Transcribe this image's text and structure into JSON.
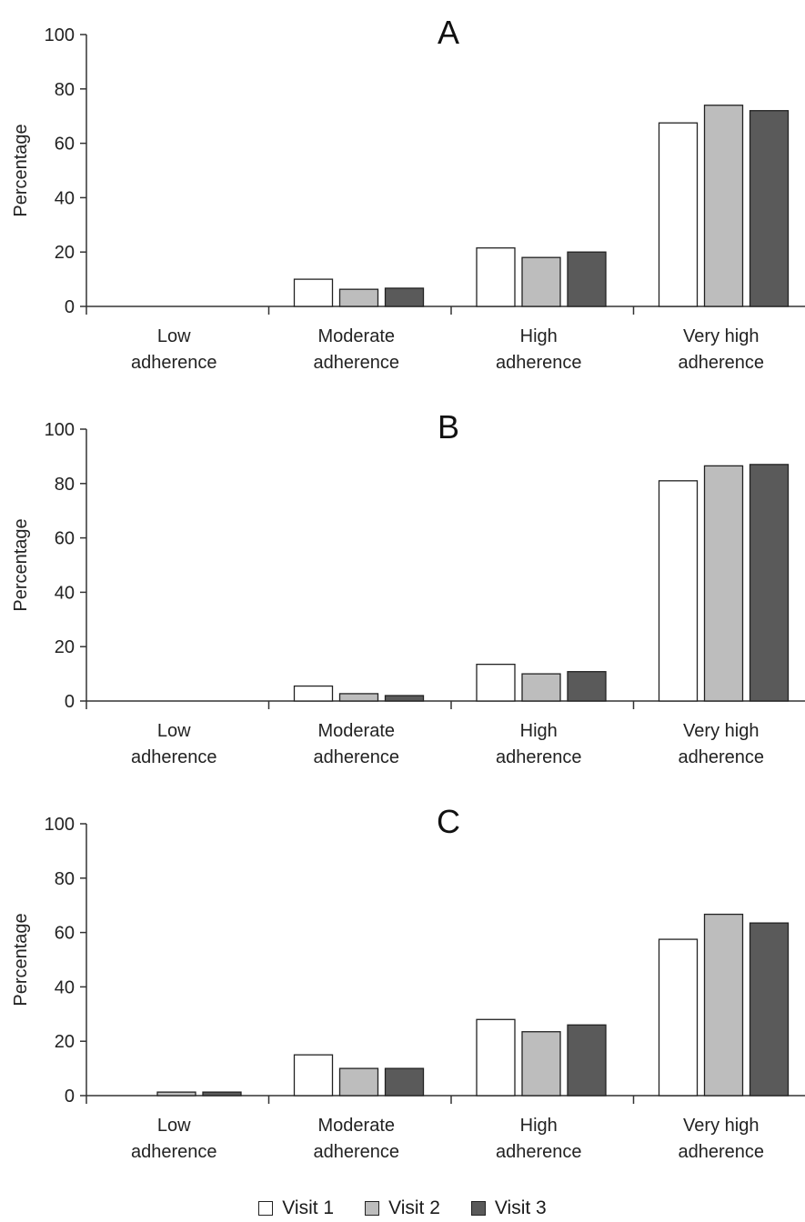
{
  "chart_data": [
    {
      "type": "bar",
      "title": "A",
      "ylabel": "Percentage",
      "ylim": [
        0,
        100
      ],
      "yticks": [
        0,
        20,
        40,
        60,
        80,
        100
      ],
      "categories": [
        [
          "Low",
          "adherence"
        ],
        [
          "Moderate",
          "adherence"
        ],
        [
          "High",
          "adherence"
        ],
        [
          "Very high",
          "adherence"
        ]
      ],
      "series": [
        {
          "name": "Visit 1",
          "color": "#ffffff",
          "values": [
            0,
            10,
            21.5,
            67.5
          ]
        },
        {
          "name": "Visit 2",
          "color": "#bdbdbd",
          "values": [
            0,
            6.3,
            18,
            74
          ]
        },
        {
          "name": "Visit 3",
          "color": "#5a5a5a",
          "values": [
            0,
            6.7,
            20,
            72
          ]
        }
      ]
    },
    {
      "type": "bar",
      "title": "B",
      "ylabel": "Percentage",
      "ylim": [
        0,
        100
      ],
      "yticks": [
        0,
        20,
        40,
        60,
        80,
        100
      ],
      "categories": [
        [
          "Low",
          "adherence"
        ],
        [
          "Moderate",
          "adherence"
        ],
        [
          "High",
          "adherence"
        ],
        [
          "Very high",
          "adherence"
        ]
      ],
      "series": [
        {
          "name": "Visit 1",
          "color": "#ffffff",
          "values": [
            0,
            5.5,
            13.5,
            81
          ]
        },
        {
          "name": "Visit 2",
          "color": "#bdbdbd",
          "values": [
            0,
            2.7,
            10,
            86.5
          ]
        },
        {
          "name": "Visit 3",
          "color": "#5a5a5a",
          "values": [
            0,
            2,
            10.8,
            87
          ]
        }
      ]
    },
    {
      "type": "bar",
      "title": "C",
      "ylabel": "Percentage",
      "ylim": [
        0,
        100
      ],
      "yticks": [
        0,
        20,
        40,
        60,
        80,
        100
      ],
      "categories": [
        [
          "Low",
          "adherence"
        ],
        [
          "Moderate",
          "adherence"
        ],
        [
          "High",
          "adherence"
        ],
        [
          "Very high",
          "adherence"
        ]
      ],
      "series": [
        {
          "name": "Visit 1",
          "color": "#ffffff",
          "values": [
            0,
            15,
            28,
            57.5
          ]
        },
        {
          "name": "Visit 2",
          "color": "#bdbdbd",
          "values": [
            1.3,
            10,
            23.5,
            66.7
          ]
        },
        {
          "name": "Visit 3",
          "color": "#5a5a5a",
          "values": [
            1.3,
            10,
            26,
            63.5
          ]
        }
      ]
    }
  ],
  "legend": {
    "items": [
      {
        "label": "Visit 1",
        "color": "#ffffff"
      },
      {
        "label": "Visit 2",
        "color": "#bdbdbd"
      },
      {
        "label": "Visit 3",
        "color": "#5a5a5a"
      }
    ]
  }
}
